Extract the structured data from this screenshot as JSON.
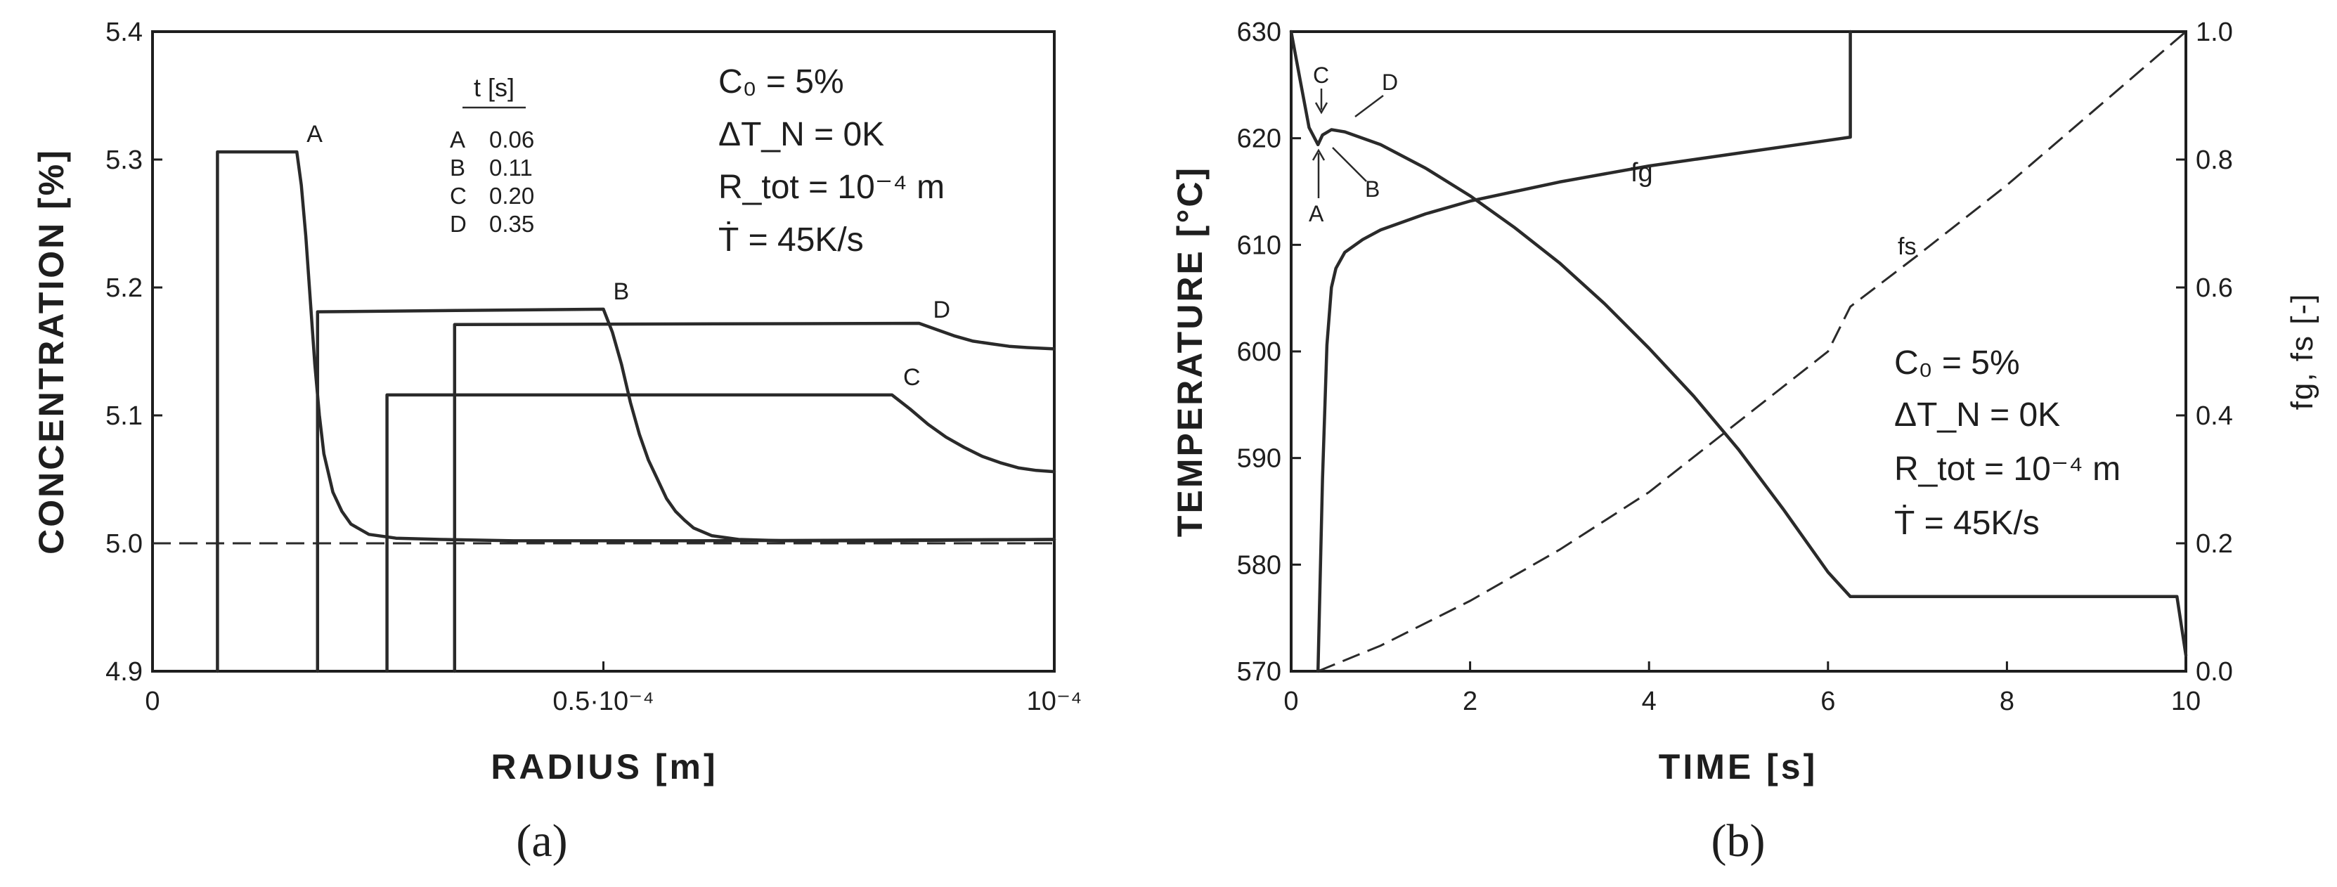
{
  "chart_data": [
    {
      "panel_label": "(a)",
      "type": "line",
      "xlabel": "RADIUS [m]",
      "ylabel": "CONCENTRATION [%]",
      "xlim": [
        0,
        0.0001
      ],
      "ylim": [
        4.9,
        5.4
      ],
      "x_tick_labels": [
        {
          "x": 0,
          "label": "0"
        },
        {
          "x": 5e-05,
          "label": "0.5·10⁻⁴"
        },
        {
          "x": 0.0001,
          "label": "10⁻⁴"
        }
      ],
      "y_ticks": [
        4.9,
        5.0,
        5.1,
        5.2,
        5.3,
        5.4
      ],
      "y_tick_labels": [
        "4.9",
        "5.0",
        "5.1",
        "5.2",
        "5.3",
        "5.4"
      ],
      "legend": {
        "title": "t [s]",
        "entries": [
          {
            "name": "A",
            "value": "0.06"
          },
          {
            "name": "B",
            "value": "0.11"
          },
          {
            "name": "C",
            "value": "0.20"
          },
          {
            "name": "D",
            "value": "0.35"
          }
        ]
      },
      "parameters": [
        "C₀ = 5%",
        "ΔT_N = 0K",
        "R_tot = 10⁻⁴ m",
        "Ṫ = 45K/s"
      ],
      "reference_line": {
        "y": 5.0,
        "style": "dashed"
      },
      "series": [
        {
          "name": "A",
          "x": [
            7.2e-06,
            7.2e-06,
            1.6e-05,
            1.65e-05,
            1.7e-05,
            1.75e-05,
            1.8e-05,
            1.85e-05,
            1.9e-05,
            2e-05,
            2.1e-05,
            2.2e-05,
            2.4e-05,
            2.7e-05,
            3.2e-05,
            4e-05,
            6e-05,
            0.0001
          ],
          "y": [
            4.9,
            5.306,
            5.306,
            5.28,
            5.24,
            5.19,
            5.14,
            5.1,
            5.07,
            5.04,
            5.025,
            5.015,
            5.007,
            5.004,
            5.003,
            5.002,
            5.002,
            5.003
          ]
        },
        {
          "name": "B",
          "x": [
            1.83e-05,
            1.83e-05,
            5e-05,
            5.1e-05,
            5.2e-05,
            5.3e-05,
            5.4e-05,
            5.5e-05,
            5.6e-05,
            5.7e-05,
            5.8e-05,
            5.9e-05,
            6e-05,
            6.2e-05,
            6.5e-05,
            7e-05,
            8e-05,
            0.0001
          ],
          "y": [
            4.9,
            5.181,
            5.183,
            5.165,
            5.14,
            5.11,
            5.085,
            5.065,
            5.05,
            5.035,
            5.025,
            5.018,
            5.012,
            5.006,
            5.003,
            5.002,
            5.002,
            5.003
          ]
        },
        {
          "name": "C",
          "x": [
            2.6e-05,
            2.6e-05,
            8.2e-05,
            8.4e-05,
            8.6e-05,
            8.8e-05,
            9e-05,
            9.2e-05,
            9.4e-05,
            9.6e-05,
            9.8e-05,
            0.0001
          ],
          "y": [
            4.9,
            5.116,
            5.116,
            5.105,
            5.093,
            5.083,
            5.075,
            5.068,
            5.063,
            5.059,
            5.057,
            5.056
          ]
        },
        {
          "name": "D",
          "x": [
            3.35e-05,
            3.35e-05,
            8.5e-05,
            8.7e-05,
            8.9e-05,
            9.1e-05,
            9.3e-05,
            9.5e-05,
            9.7e-05,
            0.0001
          ],
          "y": [
            4.9,
            5.171,
            5.172,
            5.167,
            5.162,
            5.158,
            5.156,
            5.154,
            5.153,
            5.152
          ]
        }
      ]
    },
    {
      "panel_label": "(b)",
      "type": "line",
      "xlabel": "TIME [s]",
      "ylabel": "TEMPERATURE [°C]",
      "y2label": "fg, fs [-]",
      "xlim": [
        0,
        10
      ],
      "ylim": [
        570,
        630
      ],
      "y2lim": [
        0,
        1
      ],
      "x_ticks": [
        0,
        2,
        4,
        6,
        8,
        10
      ],
      "x_tick_labels": [
        "0",
        "2",
        "4",
        "6",
        "8",
        "10"
      ],
      "y_ticks": [
        570,
        580,
        590,
        600,
        610,
        620,
        630
      ],
      "y_tick_labels": [
        "570",
        "580",
        "590",
        "600",
        "610",
        "620",
        "630"
      ],
      "y2_ticks": [
        0,
        0.2,
        0.4,
        0.6,
        0.8,
        1.0
      ],
      "y2_tick_labels": [
        "0.0",
        "0.2",
        "0.4",
        "0.6",
        "0.8",
        "1.0"
      ],
      "parameters": [
        "C₀ = 5%",
        "ΔT_N = 0K",
        "R_tot = 10⁻⁴ m",
        "Ṫ = 45K/s"
      ],
      "point_labels": [
        "A",
        "B",
        "C",
        "D"
      ],
      "series": [
        {
          "name": "",
          "axis": "left",
          "style": "solid",
          "x": [
            0,
            0.1,
            0.2,
            0.3,
            0.35,
            0.45,
            0.6,
            1,
            1.5,
            2,
            2.5,
            3,
            3.5,
            4,
            4.5,
            5,
            5.5,
            6,
            6.25,
            9.9,
            10
          ],
          "y": [
            630,
            625.5,
            621,
            619.4,
            620.3,
            620.8,
            620.6,
            619.4,
            617.2,
            614.6,
            611.6,
            608.3,
            604.5,
            600.3,
            595.8,
            590.8,
            585.2,
            579.3,
            577,
            577,
            571.5
          ]
        },
        {
          "name": "fg",
          "axis": "right",
          "style": "solid",
          "x": [
            0.3,
            0.35,
            0.4,
            0.45,
            0.5,
            0.6,
            0.8,
            1,
            1.5,
            2,
            3,
            4,
            5,
            6,
            6.25,
            6.25
          ],
          "y": [
            0,
            0.3,
            0.51,
            0.6,
            0.63,
            0.655,
            0.675,
            0.69,
            0.715,
            0.735,
            0.765,
            0.79,
            0.81,
            0.83,
            0.835,
            1.0
          ]
        },
        {
          "name": "fs",
          "axis": "right",
          "style": "dashed",
          "x": [
            0.3,
            1,
            2,
            3,
            4,
            5,
            6,
            6.25,
            7,
            8,
            9,
            10
          ],
          "y": [
            0,
            0.04,
            0.11,
            0.19,
            0.28,
            0.39,
            0.5,
            0.57,
            0.65,
            0.76,
            0.88,
            1.0
          ]
        }
      ]
    }
  ]
}
